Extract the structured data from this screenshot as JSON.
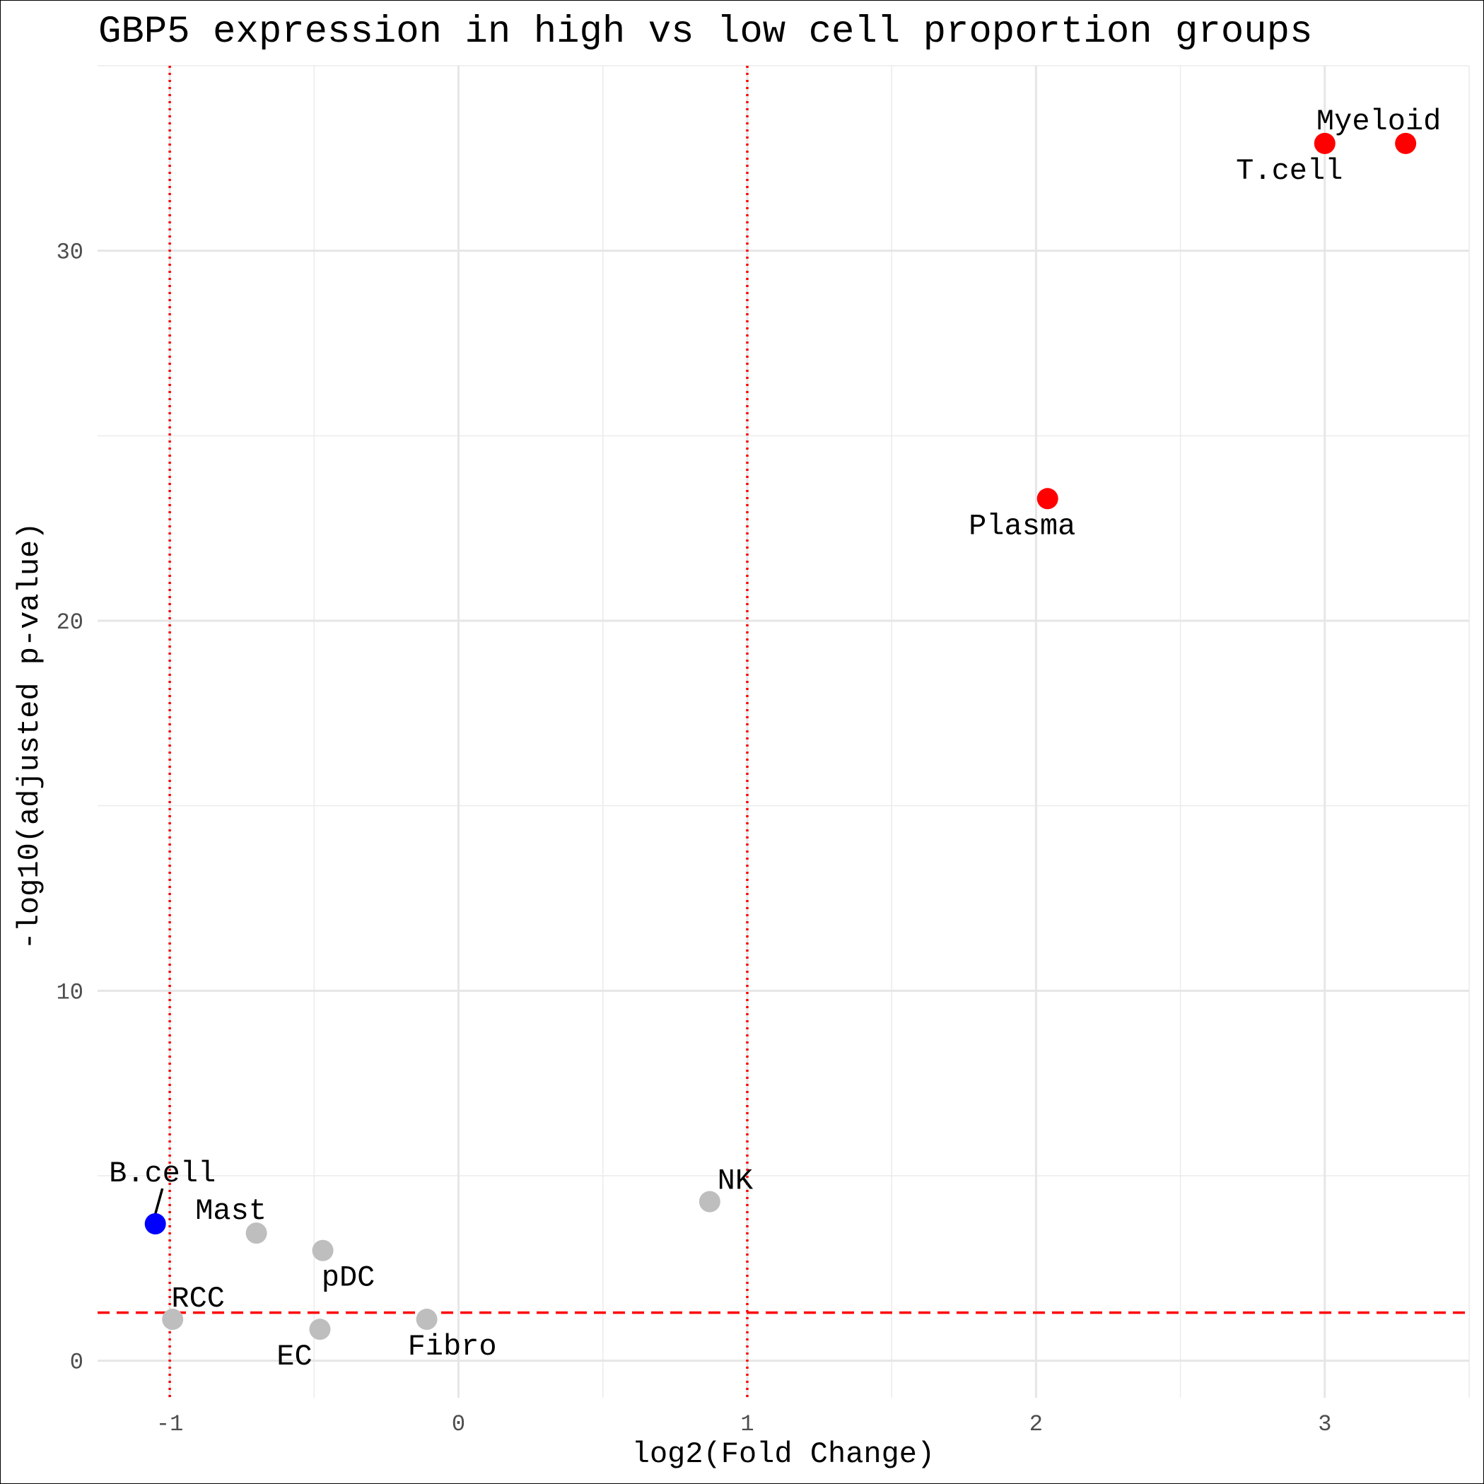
{
  "chart_data": {
    "type": "scatter",
    "title": "GBP5 expression in high vs low cell proportion groups",
    "xlabel": "log2(Fold Change)",
    "ylabel": "-log10(adjusted p-value)",
    "xlim": [
      -1.25,
      3.5
    ],
    "ylim": [
      -1,
      35
    ],
    "x_ticks": [
      -1,
      0,
      1,
      2,
      3
    ],
    "x_tick_labels": [
      "-1",
      "0",
      "1",
      "2",
      "3"
    ],
    "y_ticks": [
      0,
      10,
      20,
      30
    ],
    "y_tick_labels": [
      "0",
      "10",
      "20",
      "30"
    ],
    "grid": true,
    "reference_lines": {
      "vertical_dotted_x": [
        -1,
        1
      ],
      "horizontal_dashed_y": 1.3,
      "color": "#ff0000"
    },
    "colors": {
      "up": "#ff0000",
      "down": "#0000ff",
      "ns": "#bebebe"
    },
    "points": [
      {
        "label": "Myeloid",
        "x": 3.28,
        "y": 32.9,
        "group": "up"
      },
      {
        "label": "T.cell",
        "x": 3.0,
        "y": 32.9,
        "group": "up"
      },
      {
        "label": "Plasma",
        "x": 2.04,
        "y": 23.3,
        "group": "up"
      },
      {
        "label": "NK",
        "x": 0.87,
        "y": 4.3,
        "group": "ns"
      },
      {
        "label": "B.cell",
        "x": -1.05,
        "y": 3.7,
        "group": "down"
      },
      {
        "label": "Mast",
        "x": -0.7,
        "y": 3.45,
        "group": "ns"
      },
      {
        "label": "pDC",
        "x": -0.47,
        "y": 2.98,
        "group": "ns"
      },
      {
        "label": "RCC",
        "x": -0.99,
        "y": 1.12,
        "group": "ns"
      },
      {
        "label": "EC",
        "x": -0.48,
        "y": 0.85,
        "group": "ns"
      },
      {
        "label": "Fibro",
        "x": -0.11,
        "y": 1.12,
        "group": "ns"
      }
    ]
  }
}
